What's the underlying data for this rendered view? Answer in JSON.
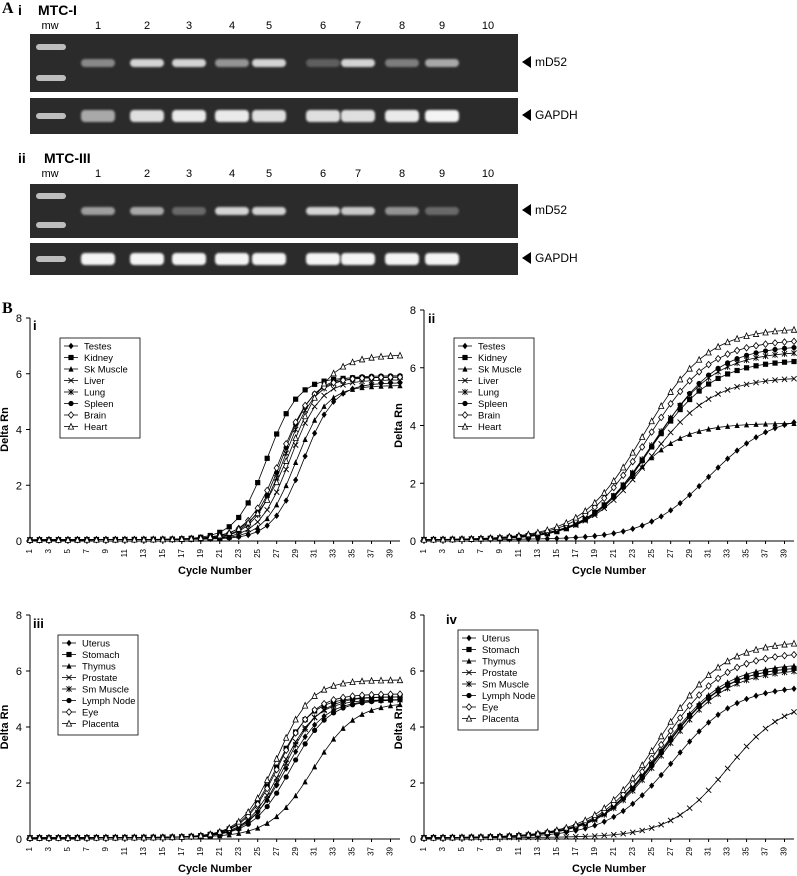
{
  "panel_A": {
    "letter": "A",
    "sections": [
      {
        "roman": "i",
        "title": "MTC-I",
        "mw_label": "mw",
        "lanes": [
          "1",
          "2",
          "3",
          "4",
          "5",
          "6",
          "7",
          "8",
          "9",
          "10"
        ],
        "gels": [
          {
            "label": "mD52",
            "band_intensity": [
              0.45,
              0.8,
              0.8,
              0.5,
              0.8,
              0.25,
              0.8,
              0.4,
              0.6,
              0.0
            ]
          },
          {
            "label": "GAPDH",
            "band_intensity": [
              0.6,
              0.85,
              0.9,
              0.9,
              0.85,
              0.85,
              0.85,
              0.9,
              0.95,
              0.0
            ]
          }
        ]
      },
      {
        "roman": "ii",
        "title": "MTC-III",
        "mw_label": "mw",
        "lanes": [
          "1",
          "2",
          "3",
          "4",
          "5",
          "6",
          "7",
          "8",
          "9",
          "10"
        ],
        "gels": [
          {
            "label": "mD52",
            "band_intensity": [
              0.55,
              0.6,
              0.3,
              0.8,
              0.8,
              0.8,
              0.75,
              0.5,
              0.3,
              0.0
            ]
          },
          {
            "label": "GAPDH",
            "band_intensity": [
              0.95,
              0.95,
              0.95,
              0.95,
              0.95,
              0.95,
              0.95,
              0.95,
              0.95,
              0.0
            ]
          }
        ]
      }
    ]
  },
  "panel_B": {
    "letter": "B"
  },
  "chart_data": [
    {
      "type": "line",
      "panel": "i",
      "xlabel": "Cycle Number",
      "ylabel": "Delta Rn",
      "xlim": [
        1,
        40
      ],
      "ylim": [
        0,
        8
      ],
      "yticks": [
        0,
        2,
        4,
        6,
        8
      ],
      "xticks": [
        1,
        3,
        5,
        7,
        9,
        11,
        13,
        15,
        17,
        19,
        21,
        23,
        25,
        27,
        29,
        31,
        33,
        35,
        37,
        39
      ],
      "legend_position": "top-left",
      "series": [
        {
          "name": "Testes",
          "marker": "diamond-filled",
          "params": {
            "mid": 29.8,
            "k": 0.62,
            "max": 5.6
          }
        },
        {
          "name": "Kidney",
          "marker": "square-filled",
          "params": {
            "mid": 26.0,
            "k": 0.62,
            "max": 5.8
          }
        },
        {
          "name": "Sk Muscle",
          "marker": "triangle-filled",
          "params": {
            "mid": 29.0,
            "k": 0.62,
            "max": 5.5
          }
        },
        {
          "name": "Liver",
          "marker": "x",
          "params": {
            "mid": 28.4,
            "k": 0.62,
            "max": 5.7
          }
        },
        {
          "name": "Lung",
          "marker": "star",
          "params": {
            "mid": 27.8,
            "k": 0.62,
            "max": 5.8
          }
        },
        {
          "name": "Spleen",
          "marker": "circle-filled",
          "params": {
            "mid": 27.6,
            "k": 0.62,
            "max": 5.85
          }
        },
        {
          "name": "Brain",
          "marker": "diamond-open",
          "params": {
            "mid": 27.4,
            "k": 0.6,
            "max": 5.8
          }
        },
        {
          "name": "Heart",
          "marker": "triangle-open",
          "params": {
            "mid": 28.6,
            "k": 0.5,
            "max": 6.6
          }
        }
      ]
    },
    {
      "type": "line",
      "panel": "ii",
      "xlabel": "Cycle Number",
      "ylabel": "Delta Rn",
      "xlim": [
        1,
        40
      ],
      "ylim": [
        0,
        8
      ],
      "yticks": [
        0,
        2,
        4,
        6,
        8
      ],
      "xticks": [
        1,
        3,
        5,
        7,
        9,
        11,
        13,
        15,
        17,
        19,
        21,
        23,
        25,
        27,
        29,
        31,
        33,
        35,
        37,
        39
      ],
      "legend_position": "top-left",
      "series": [
        {
          "name": "Testes",
          "marker": "diamond-filled",
          "params": {
            "mid": 31.0,
            "k": 0.3,
            "max": 4.3
          }
        },
        {
          "name": "Kidney",
          "marker": "square-filled",
          "params": {
            "mid": 24.8,
            "k": 0.3,
            "max": 6.2
          }
        },
        {
          "name": "Sk Muscle",
          "marker": "triangle-filled",
          "params": {
            "mid": 22.5,
            "k": 0.35,
            "max": 4.0
          }
        },
        {
          "name": "Liver",
          "marker": "x",
          "params": {
            "mid": 24.8,
            "k": 0.3,
            "max": 5.6
          }
        },
        {
          "name": "Lung",
          "marker": "star",
          "params": {
            "mid": 25.0,
            "k": 0.3,
            "max": 6.5
          }
        },
        {
          "name": "Spleen",
          "marker": "circle-filled",
          "params": {
            "mid": 25.3,
            "k": 0.3,
            "max": 6.7
          }
        },
        {
          "name": "Brain",
          "marker": "diamond-open",
          "params": {
            "mid": 24.5,
            "k": 0.3,
            "max": 6.9
          }
        },
        {
          "name": "Heart",
          "marker": "triangle-open",
          "params": {
            "mid": 24.2,
            "k": 0.3,
            "max": 7.3
          }
        }
      ]
    },
    {
      "type": "line",
      "panel": "iii",
      "xlabel": "Cycle Number",
      "ylabel": "Delta Rn",
      "xlim": [
        1,
        40
      ],
      "ylim": [
        0,
        8
      ],
      "yticks": [
        0,
        2,
        4,
        6,
        8
      ],
      "xticks": [
        1,
        3,
        5,
        7,
        9,
        11,
        13,
        15,
        17,
        19,
        21,
        23,
        25,
        27,
        29,
        31,
        33,
        35,
        37,
        39
      ],
      "legend_position": "top-left",
      "series": [
        {
          "name": "Uterus",
          "marker": "diamond-filled",
          "params": {
            "mid": 28.0,
            "k": 0.5,
            "max": 4.9
          }
        },
        {
          "name": "Stomach",
          "marker": "square-filled",
          "params": {
            "mid": 27.0,
            "k": 0.55,
            "max": 5.0
          }
        },
        {
          "name": "Thymus",
          "marker": "triangle-filled",
          "params": {
            "mid": 30.8,
            "k": 0.45,
            "max": 4.8
          }
        },
        {
          "name": "Prostate",
          "marker": "x",
          "params": {
            "mid": 27.5,
            "k": 0.55,
            "max": 4.9
          }
        },
        {
          "name": "Sm Muscle",
          "marker": "star",
          "params": {
            "mid": 27.8,
            "k": 0.55,
            "max": 5.0
          }
        },
        {
          "name": "Lymph Node",
          "marker": "circle-filled",
          "params": {
            "mid": 28.5,
            "k": 0.5,
            "max": 4.9
          }
        },
        {
          "name": "Eye",
          "marker": "diamond-open",
          "params": {
            "mid": 27.2,
            "k": 0.55,
            "max": 5.1
          }
        },
        {
          "name": "Placenta",
          "marker": "triangle-open",
          "params": {
            "mid": 27.0,
            "k": 0.55,
            "max": 5.6
          }
        }
      ]
    },
    {
      "type": "line",
      "panel": "iv",
      "xlabel": "Cycle Number",
      "ylabel": "Delta Rn",
      "xlim": [
        1,
        40
      ],
      "ylim": [
        0,
        8
      ],
      "yticks": [
        0,
        2,
        4,
        6,
        8
      ],
      "xticks": [
        1,
        3,
        5,
        7,
        9,
        11,
        13,
        15,
        17,
        19,
        21,
        23,
        25,
        27,
        29,
        31,
        33,
        35,
        37,
        39
      ],
      "legend_position": "top-left",
      "series": [
        {
          "name": "Uterus",
          "marker": "diamond-filled",
          "params": {
            "mid": 27.2,
            "k": 0.3,
            "max": 5.4
          }
        },
        {
          "name": "Stomach",
          "marker": "square-filled",
          "params": {
            "mid": 26.0,
            "k": 0.3,
            "max": 6.1
          }
        },
        {
          "name": "Thymus",
          "marker": "triangle-filled",
          "params": {
            "mid": 26.0,
            "k": 0.3,
            "max": 6.2
          }
        },
        {
          "name": "Prostate",
          "marker": "x",
          "params": {
            "mid": 33.0,
            "k": 0.33,
            "max": 4.9
          }
        },
        {
          "name": "Sm Muscle",
          "marker": "star",
          "params": {
            "mid": 26.2,
            "k": 0.3,
            "max": 6.0
          }
        },
        {
          "name": "Lymph Node",
          "marker": "circle-filled",
          "params": {
            "mid": 26.1,
            "k": 0.3,
            "max": 6.1
          }
        },
        {
          "name": "Eye",
          "marker": "diamond-open",
          "params": {
            "mid": 26.0,
            "k": 0.3,
            "max": 6.6
          }
        },
        {
          "name": "Placenta",
          "marker": "triangle-open",
          "params": {
            "mid": 25.8,
            "k": 0.3,
            "max": 7.0
          }
        }
      ]
    }
  ]
}
